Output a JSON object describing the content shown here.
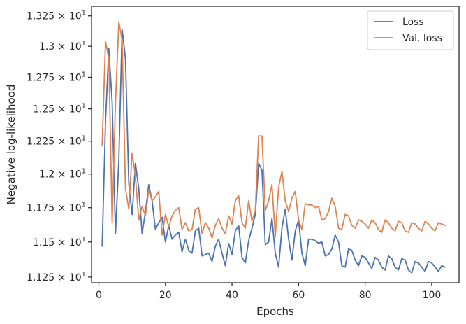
{
  "chart_data": {
    "type": "line",
    "xlabel": "Epochs",
    "ylabel": "Negative log-likelihood",
    "xlim": [
      -2.2,
      108.2
    ],
    "ylim": [
      11.21,
      13.33
    ],
    "yscale": "log",
    "grid": false,
    "legend_position": "top-right",
    "x_ticks": [
      0,
      20,
      40,
      60,
      80,
      100
    ],
    "x_tick_labels": [
      "0",
      "20",
      "40",
      "60",
      "80",
      "100"
    ],
    "y_ticks": [
      11.25,
      11.5,
      11.75,
      12.0,
      12.25,
      12.5,
      12.75,
      13.0,
      13.25
    ],
    "y_tick_labels": [
      "1.125",
      "1.15",
      "1.175",
      "1.2",
      "1.225",
      "1.25",
      "1.275",
      "1.3",
      "1.325"
    ],
    "y_tick_exponent": "10",
    "y_tick_power": "1",
    "series": [
      {
        "name": "Loss",
        "color": "#4c72b0",
        "x": [
          1,
          2,
          3,
          4,
          5,
          6,
          7,
          8,
          9,
          10,
          11,
          12,
          13,
          14,
          15,
          16,
          17,
          18,
          19,
          20,
          21,
          22,
          23,
          24,
          25,
          26,
          27,
          28,
          29,
          30,
          31,
          32,
          33,
          34,
          35,
          36,
          37,
          38,
          39,
          40,
          41,
          42,
          43,
          44,
          45,
          46,
          47,
          48,
          49,
          50,
          51,
          52,
          53,
          54,
          55,
          56,
          57,
          58,
          59,
          60,
          61,
          62,
          63,
          64,
          65,
          66,
          67,
          68,
          69,
          70,
          71,
          72,
          73,
          74,
          75,
          76,
          77,
          78,
          79,
          80,
          81,
          82,
          83,
          84,
          85,
          86,
          87,
          88,
          89,
          90,
          91,
          92,
          93,
          94,
          95,
          96,
          97,
          98,
          99,
          100,
          101,
          102,
          103,
          104
        ],
        "y": [
          11.47,
          12.4,
          12.98,
          12.55,
          11.56,
          12.1,
          13.14,
          12.9,
          11.93,
          11.7,
          12.08,
          11.89,
          11.56,
          11.72,
          11.92,
          11.8,
          11.59,
          11.64,
          11.68,
          11.5,
          11.62,
          11.52,
          11.55,
          11.57,
          11.43,
          11.52,
          11.44,
          11.42,
          11.58,
          11.6,
          11.4,
          11.41,
          11.42,
          11.36,
          11.47,
          11.52,
          11.42,
          11.33,
          11.49,
          11.41,
          11.58,
          11.62,
          11.39,
          11.35,
          11.51,
          11.6,
          11.7,
          12.08,
          12.03,
          11.48,
          11.5,
          11.67,
          11.42,
          11.32,
          11.6,
          11.74,
          11.52,
          11.37,
          11.58,
          11.66,
          11.42,
          11.33,
          11.52,
          11.52,
          11.51,
          11.49,
          11.5,
          11.4,
          11.41,
          11.45,
          11.55,
          11.5,
          11.33,
          11.32,
          11.45,
          11.44,
          11.37,
          11.33,
          11.4,
          11.39,
          11.35,
          11.31,
          11.39,
          11.37,
          11.32,
          11.3,
          11.4,
          11.38,
          11.32,
          11.3,
          11.38,
          11.37,
          11.3,
          11.28,
          11.36,
          11.35,
          11.32,
          11.29,
          11.36,
          11.35,
          11.32,
          11.29,
          11.33,
          11.32
        ]
      },
      {
        "name": "Val. loss",
        "color": "#dd8452",
        "x": [
          1,
          2,
          3,
          4,
          5,
          6,
          7,
          8,
          9,
          10,
          11,
          12,
          13,
          14,
          15,
          16,
          17,
          18,
          19,
          20,
          21,
          22,
          23,
          24,
          25,
          26,
          27,
          28,
          29,
          30,
          31,
          32,
          33,
          34,
          35,
          36,
          37,
          38,
          39,
          40,
          41,
          42,
          43,
          44,
          45,
          46,
          47,
          48,
          49,
          50,
          51,
          52,
          53,
          54,
          55,
          56,
          57,
          58,
          59,
          60,
          61,
          62,
          63,
          64,
          65,
          66,
          67,
          68,
          69,
          70,
          71,
          72,
          73,
          74,
          75,
          76,
          77,
          78,
          79,
          80,
          81,
          82,
          83,
          84,
          85,
          86,
          87,
          88,
          89,
          90,
          91,
          92,
          93,
          94,
          95,
          96,
          97,
          98,
          99,
          100,
          101,
          102,
          103,
          104
        ],
        "y": [
          12.22,
          13.04,
          12.9,
          11.64,
          12.55,
          13.2,
          13.05,
          11.89,
          11.74,
          12.16,
          11.98,
          11.66,
          11.76,
          11.69,
          11.88,
          11.8,
          11.83,
          11.87,
          11.55,
          11.7,
          11.61,
          11.69,
          11.73,
          11.75,
          11.59,
          11.64,
          11.58,
          11.59,
          11.74,
          11.75,
          11.56,
          11.64,
          11.6,
          11.53,
          11.62,
          11.67,
          11.6,
          11.56,
          11.69,
          11.63,
          11.8,
          11.84,
          11.64,
          11.6,
          11.8,
          11.65,
          11.73,
          12.29,
          12.29,
          11.73,
          11.8,
          11.92,
          11.54,
          11.9,
          12.02,
          11.8,
          11.72,
          11.82,
          11.87,
          11.66,
          11.59,
          11.78,
          11.77,
          11.77,
          11.75,
          11.76,
          11.66,
          11.67,
          11.72,
          11.82,
          11.76,
          11.6,
          11.59,
          11.7,
          11.69,
          11.62,
          11.6,
          11.66,
          11.65,
          11.63,
          11.6,
          11.66,
          11.64,
          11.59,
          11.57,
          11.66,
          11.64,
          11.6,
          11.58,
          11.65,
          11.64,
          11.58,
          11.57,
          11.64,
          11.63,
          11.6,
          11.58,
          11.65,
          11.63,
          11.6,
          11.58,
          11.64,
          11.63,
          11.62
        ]
      }
    ]
  }
}
